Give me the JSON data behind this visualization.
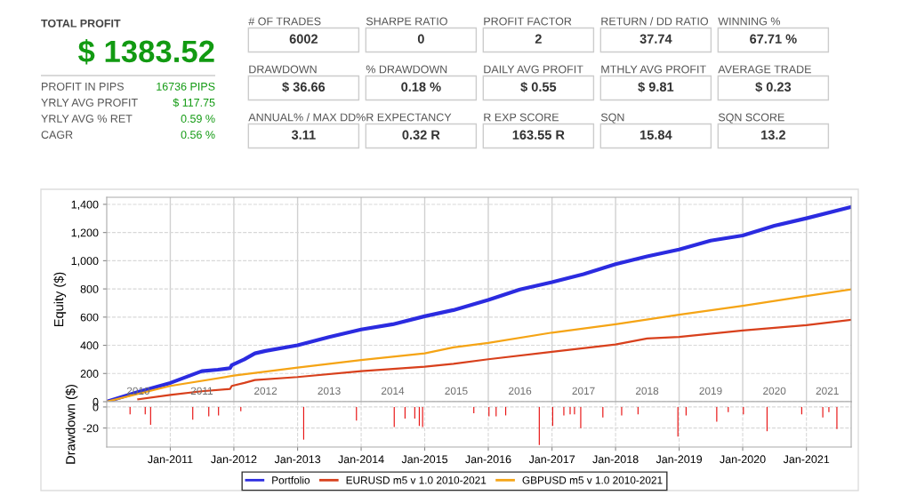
{
  "chart_data": [
    {
      "type": "other",
      "title": "TOTAL PROFIT",
      "subtitle": "$ 1383.52",
      "color": "#129a12",
      "categories": [
        "PROFIT IN PIPS",
        "YRLY AVG PROFIT",
        "YRLY AVG % RET",
        "CAGR"
      ],
      "value_labels": [
        "16736 PIPS",
        "$ 117.75",
        "0.59 %",
        "0.56 %"
      ]
    },
    {
      "type": "other",
      "categories": [
        "# OF TRADES",
        "SHARPE RATIO",
        "PROFIT FACTOR",
        "RETURN / DD RATIO",
        "WINNING %",
        "DRAWDOWN",
        "% DRAWDOWN",
        "DAILY AVG PROFIT",
        "MTHLY AVG PROFIT",
        "AVERAGE TRADE",
        "ANNUAL% / MAX DD%",
        "R EXPECTANCY",
        "R EXP SCORE",
        "SQN",
        "SQN SCORE"
      ],
      "value_labels": [
        "6002",
        "0",
        "2",
        "37.74",
        "67.71 %",
        "$ 36.66",
        "0.18 %",
        "$ 0.55",
        "$ 9.81",
        "$ 0.23",
        "3.11",
        "0.32 R",
        "163.55 R",
        "15.84",
        "13.2"
      ]
    },
    {
      "type": "line",
      "ylabel": "Equity ($)",
      "grid": "y",
      "legend": "bottom",
      "ref_lines": [
        {
          "axis": "x",
          "value": "2011-01-01"
        },
        {
          "axis": "x",
          "value": "2012-01-01"
        },
        {
          "axis": "x",
          "value": "2013-01-01"
        },
        {
          "axis": "x",
          "value": "2014-01-01"
        },
        {
          "axis": "x",
          "value": "2015-01-01"
        },
        {
          "axis": "x",
          "value": "2016-01-01"
        },
        {
          "axis": "x",
          "value": "2017-01-01"
        },
        {
          "axis": "x",
          "value": "2018-01-01"
        },
        {
          "axis": "x",
          "value": "2019-01-01"
        },
        {
          "axis": "x",
          "value": "2020-01-01"
        },
        {
          "axis": "x",
          "value": "2021-01-01"
        }
      ],
      "xlim": [
        "2010-01-01",
        "2021-09-15"
      ],
      "ylim": [
        0,
        1450
      ],
      "xticks": [
        {
          "value": "2010-07-01",
          "label": "2010"
        },
        {
          "value": "2011-07-01",
          "label": "2011"
        },
        {
          "value": "2012-07-01",
          "label": "2012"
        },
        {
          "value": "2013-07-01",
          "label": "2013"
        },
        {
          "value": "2014-07-01",
          "label": "2014"
        },
        {
          "value": "2015-07-01",
          "label": "2015"
        },
        {
          "value": "2016-07-01",
          "label": "2016"
        },
        {
          "value": "2017-07-01",
          "label": "2017"
        },
        {
          "value": "2018-07-01",
          "label": "2018"
        },
        {
          "value": "2019-07-01",
          "label": "2019"
        },
        {
          "value": "2020-07-01",
          "label": "2020"
        },
        {
          "value": "2021-05-01",
          "label": "2021"
        }
      ],
      "yticks": [
        0,
        200,
        400,
        600,
        800,
        {
          "value": 1000,
          "label": "1,000"
        },
        {
          "value": 1200,
          "label": "1,200"
        },
        {
          "value": 1400,
          "label": "1,400"
        }
      ],
      "series": [
        {
          "name": "Portfolio",
          "color": "#2b2be0",
          "x": [
            "2010-01-01",
            "2010-07-01",
            "2011-01-01",
            "2011-07-01",
            "2011-10-01",
            "2011-12-10",
            "2011-12-20",
            "2012-03-01",
            "2012-05-01",
            "2012-07-01",
            "2013-01-01",
            "2013-07-01",
            "2014-01-01",
            "2014-07-01",
            "2015-01-01",
            "2015-06-15",
            "2016-01-01",
            "2016-07-01",
            "2017-01-01",
            "2017-07-01",
            "2018-01-01",
            "2018-07-01",
            "2019-01-01",
            "2019-07-01",
            "2020-01-01",
            "2020-07-01",
            "2021-01-01",
            "2021-09-15"
          ],
          "values": [
            0,
            70,
            133,
            217,
            227,
            238,
            259,
            300,
            343,
            360,
            400,
            459,
            512,
            549,
            606,
            650,
            722,
            796,
            848,
            905,
            975,
            1031,
            1080,
            1143,
            1179,
            1248,
            1301,
            1381
          ]
        },
        {
          "name": "EURUSD m5 v 1.0 2010-2021",
          "color": "#d8401c",
          "x": [
            "2010-07-01",
            "2011-01-01",
            "2011-07-01",
            "2011-12-10",
            "2011-12-20",
            "2012-03-01",
            "2012-05-01",
            "2013-01-01",
            "2014-01-01",
            "2015-01-01",
            "2015-06-15",
            "2016-01-01",
            "2017-01-01",
            "2018-01-01",
            "2018-07-01",
            "2019-01-01",
            "2020-01-01",
            "2021-01-01",
            "2021-09-15"
          ],
          "values": [
            17,
            48,
            74,
            90,
            112,
            133,
            154,
            175,
            217,
            248,
            269,
            301,
            354,
            406,
            448,
            459,
            505,
            543,
            581
          ]
        },
        {
          "name": "GBPUSD m5 v 1.0 2010-2021",
          "color": "#f5a415",
          "x": [
            "2010-01-01",
            "2011-01-01",
            "2012-01-01",
            "2013-01-01",
            "2014-01-01",
            "2015-01-01",
            "2015-06-15",
            "2016-01-01",
            "2017-01-01",
            "2018-01-01",
            "2019-01-01",
            "2020-01-01",
            "2021-01-01",
            "2021-09-15"
          ],
          "values": [
            0,
            112,
            185,
            242,
            295,
            343,
            385,
            417,
            490,
            549,
            617,
            680,
            749,
            796
          ]
        }
      ]
    },
    {
      "type": "bar",
      "ylabel": "Drawdown ($)",
      "grid": true,
      "color": "#e81414",
      "xlim": [
        "2010-01-01",
        "2021-09-15"
      ],
      "ylim": [
        -38,
        5
      ],
      "xticks": [
        {
          "value": "2011-01-01",
          "label": "Jan-2011"
        },
        {
          "value": "2012-01-01",
          "label": "Jan-2012"
        },
        {
          "value": "2013-01-01",
          "label": "Jan-2013"
        },
        {
          "value": "2014-01-01",
          "label": "Jan-2014"
        },
        {
          "value": "2015-01-01",
          "label": "Jan-2015"
        },
        {
          "value": "2016-01-01",
          "label": "Jan-2016"
        },
        {
          "value": "2017-01-01",
          "label": "Jan-2017"
        },
        {
          "value": "2018-01-01",
          "label": "Jan-2018"
        },
        {
          "value": "2019-01-01",
          "label": "Jan-2019"
        },
        {
          "value": "2020-01-01",
          "label": "Jan-2020"
        },
        {
          "value": "2021-01-01",
          "label": "Jan-2021"
        }
      ],
      "yticks": [
        -20,
        0
      ],
      "x": [
        "2010-05-15",
        "2010-08-10",
        "2010-09-10",
        "2011-05-10",
        "2011-08-10",
        "2011-10-05",
        "2012-02-10",
        "2013-02-05",
        "2013-12-05",
        "2014-07-10",
        "2014-09-10",
        "2014-11-05",
        "2014-12-01",
        "2014-12-20",
        "2015-10-10",
        "2016-01-05",
        "2016-02-15",
        "2016-04-10",
        "2016-10-20",
        "2017-01-05",
        "2017-03-10",
        "2017-04-15",
        "2017-05-10",
        "2017-06-15",
        "2017-10-20",
        "2018-02-05",
        "2018-05-10",
        "2018-12-25",
        "2019-02-10",
        "2019-08-05",
        "2019-10-10",
        "2020-01-05",
        "2020-05-20",
        "2020-12-05",
        "2021-04-05",
        "2021-05-10",
        "2021-06-25"
      ],
      "values": [
        -7,
        -7,
        -17,
        -12,
        -9,
        -8,
        -4,
        -31,
        -13,
        -19,
        -11,
        -11,
        -18,
        -19,
        -6,
        -9,
        -9,
        -8,
        -36,
        -18,
        -8,
        -7,
        -7,
        -20,
        -10,
        -8,
        -7,
        -28,
        -8,
        -14,
        -5,
        -7,
        -23,
        -7,
        -10,
        -5,
        -21
      ]
    }
  ]
}
